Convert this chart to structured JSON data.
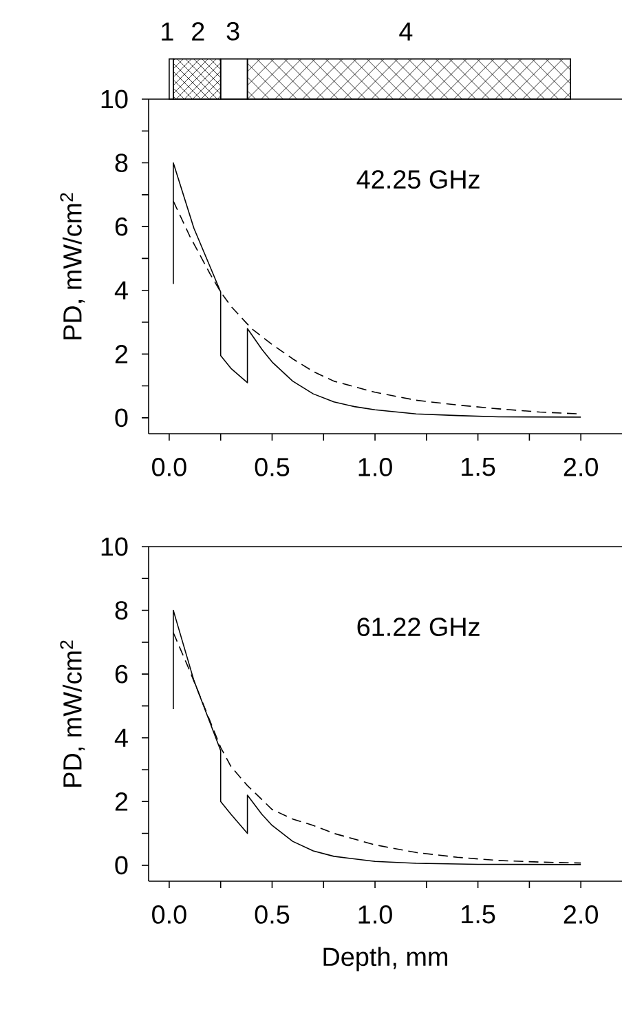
{
  "chart_data": [
    {
      "type": "line",
      "ylabel": "PD, mW/cm$^{2}$",
      "annotations": [
        "42.25 GHz",
        "1",
        "2",
        "3",
        "4"
      ],
      "xlim": [
        -0.1,
        2.2
      ],
      "ylim": [
        -0.5,
        10
      ],
      "xticks": [
        {
          "value": 0,
          "label": "0.0"
        },
        {
          "value": 0.25,
          "label": null
        },
        {
          "value": 0.5,
          "label": "0.5"
        },
        {
          "value": 0.75,
          "label": null
        },
        {
          "value": 1,
          "label": "1.0"
        },
        {
          "value": 1.25,
          "label": null
        },
        {
          "value": 1.5,
          "label": "1.5"
        },
        {
          "value": 1.75,
          "label": null
        },
        {
          "value": 2,
          "label": "2.0"
        }
      ],
      "yticks": [
        0,
        {
          "value": 1,
          "label": null
        },
        2,
        {
          "value": 3,
          "label": null
        },
        4,
        {
          "value": 5,
          "label": null
        },
        6,
        {
          "value": 7,
          "label": null
        },
        8,
        {
          "value": 9,
          "label": null
        },
        10
      ],
      "series": [
        {
          "color": "#000000",
          "line_style": "solid",
          "x": [
            0.02,
            0.02,
            0.12,
            0.25,
            0.25,
            0.3,
            0.38,
            0.38,
            0.45,
            0.5,
            0.6,
            0.7,
            0.8,
            0.9,
            1.0,
            1.2,
            1.4,
            1.6,
            2.0
          ],
          "values": [
            4.2,
            8.0,
            5.95,
            3.95,
            1.95,
            1.55,
            1.1,
            2.8,
            2.15,
            1.75,
            1.15,
            0.75,
            0.5,
            0.35,
            0.25,
            0.12,
            0.07,
            0.03,
            0.02
          ]
        },
        {
          "color": "#000000",
          "line_style": "dashed",
          "x": [
            0.02,
            0.1,
            0.2,
            0.25,
            0.3,
            0.4,
            0.5,
            0.6,
            0.7,
            0.8,
            1.0,
            1.2,
            1.4,
            1.6,
            1.8,
            2.0
          ],
          "values": [
            6.8,
            5.7,
            4.5,
            3.95,
            3.5,
            2.8,
            2.3,
            1.85,
            1.45,
            1.15,
            0.8,
            0.55,
            0.4,
            0.28,
            0.18,
            0.12
          ]
        }
      ]
    },
    {
      "type": "line",
      "xlabel": "Depth, mm",
      "ylabel": "PD, mW/cm$^{2}$",
      "annotations": [
        "61.22 GHz"
      ],
      "xlim": [
        -0.1,
        2.2
      ],
      "ylim": [
        -0.5,
        10
      ],
      "xticks": [
        {
          "value": 0,
          "label": "0.0"
        },
        {
          "value": 0.25,
          "label": null
        },
        {
          "value": 0.5,
          "label": "0.5"
        },
        {
          "value": 0.75,
          "label": null
        },
        {
          "value": 1,
          "label": "1.0"
        },
        {
          "value": 1.25,
          "label": null
        },
        {
          "value": 1.5,
          "label": "1.5"
        },
        {
          "value": 1.75,
          "label": null
        },
        {
          "value": 2,
          "label": "2.0"
        }
      ],
      "yticks": [
        0,
        {
          "value": 1,
          "label": null
        },
        2,
        {
          "value": 3,
          "label": null
        },
        4,
        {
          "value": 5,
          "label": null
        },
        6,
        {
          "value": 7,
          "label": null
        },
        8,
        {
          "value": 9,
          "label": null
        },
        10
      ],
      "series": [
        {
          "color": "#000000",
          "line_style": "solid",
          "x": [
            0.02,
            0.02,
            0.12,
            0.25,
            0.25,
            0.3,
            0.38,
            0.38,
            0.45,
            0.5,
            0.6,
            0.7,
            0.8,
            1.0,
            1.2,
            1.5,
            2.0
          ],
          "values": [
            4.9,
            8.0,
            5.8,
            3.6,
            2.0,
            1.6,
            1.0,
            2.2,
            1.6,
            1.25,
            0.75,
            0.45,
            0.28,
            0.12,
            0.06,
            0.03,
            0.02
          ]
        },
        {
          "color": "#000000",
          "line_style": "dashed",
          "x": [
            0.02,
            0.1,
            0.2,
            0.25,
            0.3,
            0.38,
            0.5,
            0.6,
            0.7,
            0.8,
            1.0,
            1.2,
            1.4,
            1.6,
            1.8,
            2.0
          ],
          "values": [
            7.3,
            6.1,
            4.5,
            3.7,
            3.1,
            2.5,
            1.75,
            1.45,
            1.25,
            1.0,
            0.64,
            0.4,
            0.25,
            0.15,
            0.1,
            0.07
          ]
        }
      ]
    }
  ]
}
